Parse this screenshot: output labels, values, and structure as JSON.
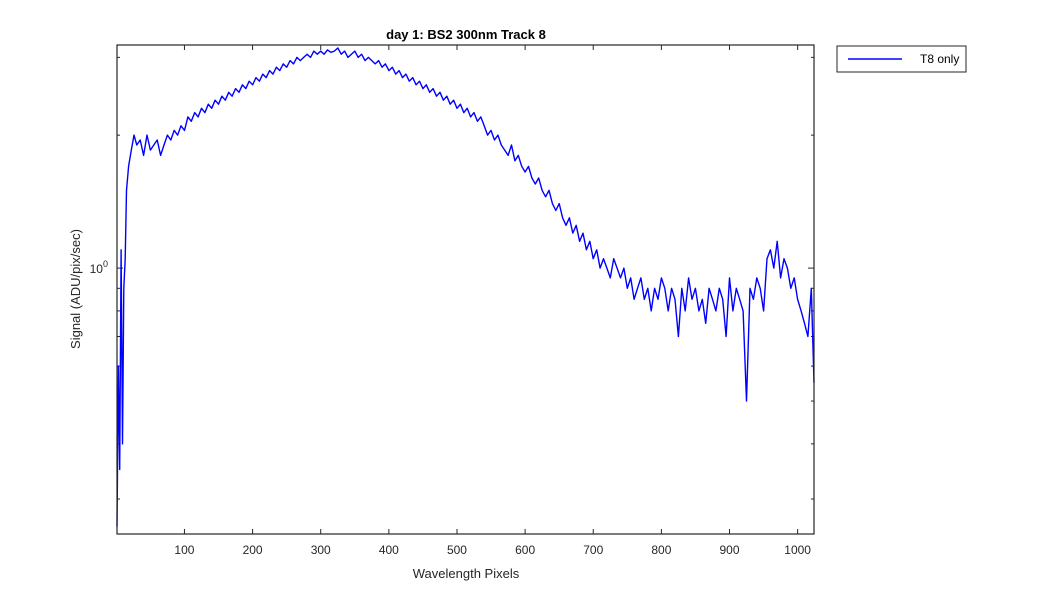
{
  "chart_data": {
    "type": "line",
    "title": "day 1: BS2  300nm  Track 8",
    "xlabel": "Wavelength Pixels",
    "ylabel": "Signal (ADU/pix/sec)",
    "xlim": [
      1,
      1024
    ],
    "ylim": [
      0.25,
      3.2
    ],
    "yscale": "log",
    "xticks": [
      100,
      200,
      300,
      400,
      500,
      600,
      700,
      800,
      900,
      1000
    ],
    "yticks": [
      1
    ],
    "ytick_labels": [
      "10",
      "0"
    ],
    "grid": false,
    "legend_position": "outside-top-right",
    "series": [
      {
        "name": "T8 only",
        "color": "#0000ff",
        "x": [
          1,
          3,
          5,
          7,
          9,
          11,
          13,
          15,
          18,
          22,
          26,
          30,
          35,
          40,
          45,
          50,
          55,
          60,
          65,
          70,
          75,
          80,
          85,
          90,
          95,
          100,
          105,
          110,
          115,
          120,
          125,
          130,
          135,
          140,
          145,
          150,
          155,
          160,
          165,
          170,
          175,
          180,
          185,
          190,
          195,
          200,
          205,
          210,
          215,
          220,
          225,
          230,
          235,
          240,
          245,
          250,
          255,
          260,
          265,
          270,
          275,
          280,
          285,
          290,
          295,
          300,
          305,
          310,
          315,
          320,
          325,
          330,
          335,
          340,
          345,
          350,
          355,
          360,
          365,
          370,
          375,
          380,
          385,
          390,
          395,
          400,
          405,
          410,
          415,
          420,
          425,
          430,
          435,
          440,
          445,
          450,
          455,
          460,
          465,
          470,
          475,
          480,
          485,
          490,
          495,
          500,
          505,
          510,
          515,
          520,
          525,
          530,
          535,
          540,
          545,
          550,
          555,
          560,
          565,
          570,
          575,
          580,
          585,
          590,
          595,
          600,
          605,
          610,
          615,
          620,
          625,
          630,
          635,
          640,
          645,
          650,
          655,
          660,
          665,
          670,
          675,
          680,
          685,
          690,
          695,
          700,
          705,
          710,
          715,
          720,
          725,
          730,
          735,
          740,
          745,
          750,
          755,
          760,
          765,
          770,
          775,
          780,
          785,
          790,
          795,
          800,
          805,
          810,
          815,
          820,
          825,
          830,
          835,
          840,
          845,
          850,
          855,
          860,
          865,
          870,
          875,
          880,
          885,
          890,
          895,
          900,
          905,
          910,
          915,
          920,
          925,
          930,
          935,
          940,
          945,
          950,
          955,
          960,
          965,
          970,
          975,
          980,
          985,
          990,
          995,
          1000,
          1005,
          1010,
          1015,
          1020,
          1024
        ],
        "y": [
          0.26,
          0.6,
          0.35,
          1.1,
          0.4,
          0.9,
          1.05,
          1.5,
          1.7,
          1.85,
          2.0,
          1.9,
          1.95,
          1.8,
          2.0,
          1.85,
          1.9,
          1.95,
          1.8,
          1.9,
          2.0,
          1.95,
          2.05,
          2.0,
          2.1,
          2.05,
          2.2,
          2.15,
          2.25,
          2.2,
          2.3,
          2.25,
          2.35,
          2.3,
          2.4,
          2.35,
          2.45,
          2.4,
          2.5,
          2.45,
          2.55,
          2.5,
          2.6,
          2.55,
          2.65,
          2.6,
          2.7,
          2.65,
          2.75,
          2.7,
          2.8,
          2.75,
          2.85,
          2.8,
          2.9,
          2.85,
          2.95,
          2.9,
          3.0,
          2.95,
          3.0,
          3.05,
          3.0,
          3.1,
          3.05,
          3.1,
          3.05,
          3.12,
          3.08,
          3.1,
          3.15,
          3.05,
          3.1,
          3.0,
          3.05,
          3.1,
          3.0,
          3.05,
          2.95,
          3.0,
          2.95,
          2.9,
          2.95,
          2.85,
          2.9,
          2.8,
          2.85,
          2.75,
          2.8,
          2.7,
          2.75,
          2.65,
          2.7,
          2.6,
          2.65,
          2.55,
          2.6,
          2.5,
          2.55,
          2.45,
          2.5,
          2.4,
          2.45,
          2.35,
          2.4,
          2.3,
          2.35,
          2.25,
          2.3,
          2.2,
          2.25,
          2.15,
          2.2,
          2.1,
          2.0,
          2.05,
          1.95,
          2.0,
          1.9,
          1.85,
          1.8,
          1.9,
          1.75,
          1.8,
          1.7,
          1.65,
          1.7,
          1.6,
          1.55,
          1.6,
          1.5,
          1.45,
          1.5,
          1.4,
          1.35,
          1.4,
          1.3,
          1.25,
          1.3,
          1.2,
          1.25,
          1.15,
          1.2,
          1.1,
          1.15,
          1.05,
          1.1,
          1.0,
          1.05,
          1.0,
          0.95,
          1.05,
          1.0,
          0.95,
          1.0,
          0.9,
          0.95,
          0.85,
          0.9,
          0.95,
          0.85,
          0.9,
          0.8,
          0.9,
          0.85,
          0.95,
          0.9,
          0.8,
          0.9,
          0.85,
          0.7,
          0.9,
          0.8,
          0.95,
          0.85,
          0.9,
          0.8,
          0.85,
          0.75,
          0.9,
          0.85,
          0.8,
          0.9,
          0.85,
          0.7,
          0.95,
          0.8,
          0.9,
          0.85,
          0.8,
          0.5,
          0.9,
          0.85,
          0.95,
          0.9,
          0.8,
          1.05,
          1.1,
          1.0,
          1.15,
          0.95,
          1.05,
          1.0,
          0.9,
          0.95,
          0.85,
          0.8,
          0.75,
          0.7,
          0.9,
          0.55
        ]
      }
    ]
  }
}
